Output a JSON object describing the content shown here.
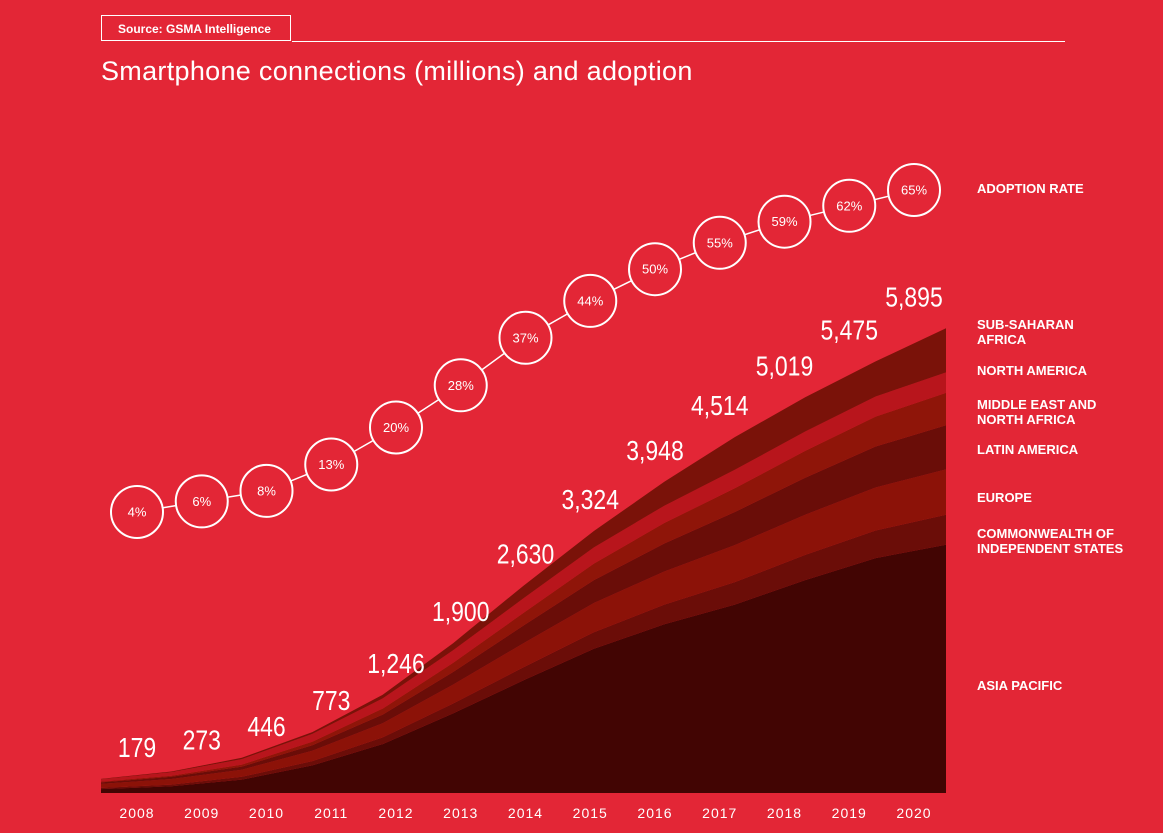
{
  "header": {
    "source": "Source: GSMA Intelligence",
    "title": "Smartphone connections (millions) and adoption"
  },
  "colors": {
    "background": "#e32636",
    "Asia Pacific": "#420503",
    "Commonwealth of Independent States": "#6b0d08",
    "Europe": "#8c1208",
    "Latin America": "#6a0d08",
    "Middle East and North Africa": "#8f1509",
    "North America": "#b8151c",
    "Sub-Saharan Africa": "#7a1209"
  },
  "chart_data": {
    "type": "area",
    "stacked": true,
    "x": [
      "2008",
      "2009",
      "2010",
      "2011",
      "2012",
      "2013",
      "2014",
      "2015",
      "2016",
      "2017",
      "2018",
      "2019",
      "2020"
    ],
    "totals": [
      179,
      273,
      446,
      773,
      1246,
      1900,
      2630,
      3324,
      3948,
      4514,
      5019,
      5475,
      5895
    ],
    "totals_labels": [
      "179",
      "273",
      "446",
      "773",
      "1,246",
      "1,900",
      "2,630",
      "3,324",
      "3,948",
      "4,514",
      "5,019",
      "5,475",
      "5,895"
    ],
    "series": [
      {
        "name": "ASIA PACIFIC",
        "values": [
          50,
          85,
          170,
          350,
          620,
          1010,
          1430,
          1830,
          2140,
          2390,
          2700,
          2980,
          3150
        ]
      },
      {
        "name": "COMMONWEALTH OF INDEPENDENT STATES",
        "values": [
          15,
          22,
          35,
          55,
          85,
          125,
          165,
          210,
          250,
          285,
          320,
          350,
          380
        ]
      },
      {
        "name": "EUROPE",
        "values": [
          50,
          70,
          90,
          130,
          180,
          240,
          305,
          370,
          420,
          470,
          510,
          545,
          575
        ]
      },
      {
        "name": "LATIN AMERICA",
        "values": [
          20,
          28,
          40,
          70,
          110,
          160,
          225,
          290,
          355,
          420,
          470,
          520,
          560
        ]
      },
      {
        "name": "MIDDLE EAST AND NORTH AFRICA",
        "values": [
          10,
          15,
          25,
          45,
          75,
          115,
          160,
          210,
          260,
          300,
          340,
          380,
          410
        ]
      },
      {
        "name": "NORTH AMERICA",
        "values": [
          30,
          45,
          70,
          100,
          130,
          160,
          185,
          205,
          220,
          235,
          245,
          255,
          260
        ]
      },
      {
        "name": "SUB-SAHARAN AFRICA",
        "values": [
          4,
          8,
          16,
          23,
          46,
          90,
          160,
          209,
          303,
          414,
          434,
          445,
          560
        ]
      }
    ],
    "adoption_rate": {
      "name": "ADOPTION RATE",
      "values": [
        4,
        6,
        8,
        13,
        20,
        28,
        37,
        44,
        50,
        55,
        59,
        62,
        65
      ],
      "labels": [
        "4%",
        "6%",
        "8%",
        "13%",
        "20%",
        "28%",
        "37%",
        "44%",
        "50%",
        "55%",
        "59%",
        "62%",
        "65%"
      ]
    },
    "legend": [
      "ADOPTION RATE",
      "SUB-SAHARAN AFRICA",
      "NORTH AMERICA",
      "MIDDLE EAST AND NORTH AFRICA",
      "LATIN AMERICA",
      "EUROPE",
      "COMMONWEALTH OF INDEPENDENT STATES",
      "ASIA PACIFIC"
    ],
    "legend_lines": [
      [
        "ADOPTION RATE"
      ],
      [
        "SUB-SAHARAN",
        "AFRICA"
      ],
      [
        "NORTH AMERICA"
      ],
      [
        "MIDDLE EAST AND",
        "NORTH AFRICA"
      ],
      [
        "LATIN AMERICA"
      ],
      [
        "EUROPE"
      ],
      [
        "COMMONWEALTH OF",
        "INDEPENDENT STATES"
      ],
      [
        "ASIA PACIFIC"
      ]
    ],
    "legend_placement": "right",
    "ylim": [
      0,
      6000
    ],
    "grid": false
  }
}
